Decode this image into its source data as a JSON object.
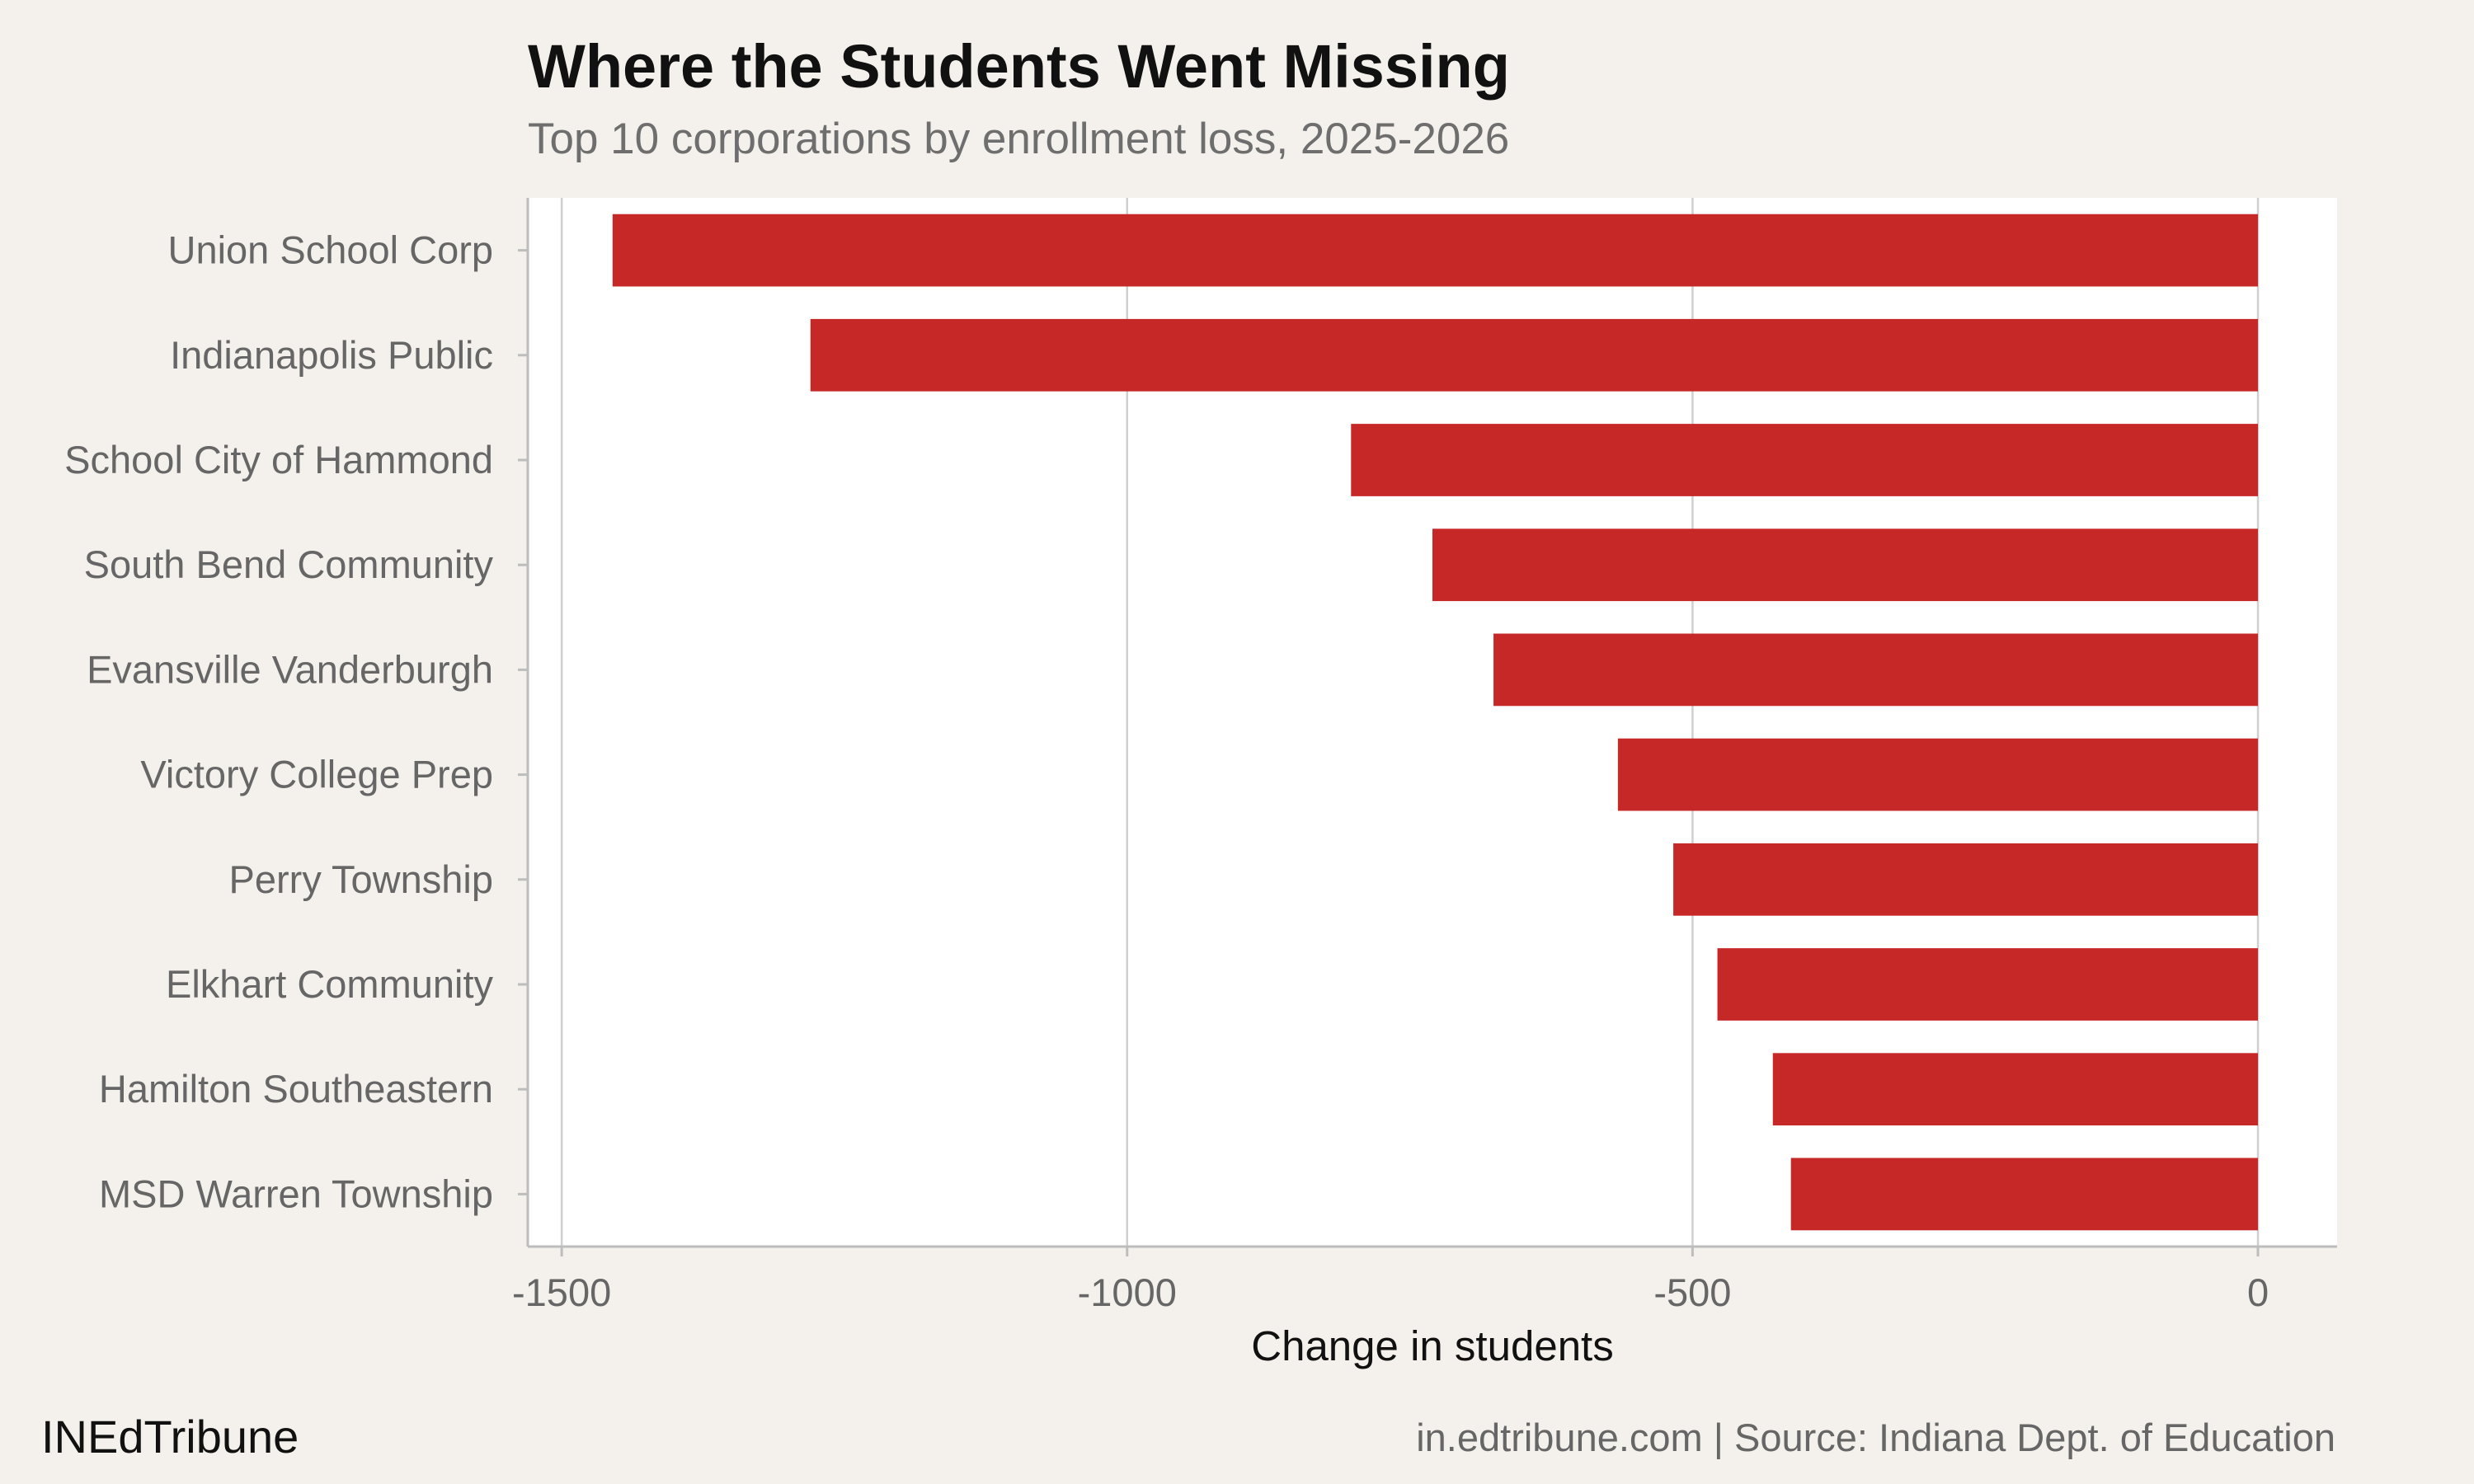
{
  "chart_data": {
    "type": "bar",
    "orientation": "horizontal",
    "title": "Where the Students Went Missing",
    "subtitle": "Top 10 corporations by enrollment loss, 2025-2026",
    "xlabel": "Change in students",
    "ylabel": "",
    "categories": [
      "Union School Corp",
      "Indianapolis Public",
      "School City of Hammond",
      "South Bend Community",
      "Evansville Vanderburgh",
      "Victory College Prep",
      "Perry Township",
      "Elkhart Community",
      "Hamilton Southeastern",
      "MSD Warren Township"
    ],
    "values": [
      -1455,
      -1280,
      -802,
      -730,
      -676,
      -566,
      -517,
      -478,
      -429,
      -413
    ],
    "xlim": [
      -1530,
      70
    ],
    "xticks": [
      -1500,
      -1000,
      -500,
      0
    ],
    "xtick_labels": [
      "-1500",
      "-1000",
      "-500",
      "0"
    ],
    "grid": true,
    "bar_color": "#c62828"
  },
  "footer": {
    "brand": "INEdTribune",
    "source": "in.edtribune.com | Source: Indiana Dept. of Education"
  }
}
